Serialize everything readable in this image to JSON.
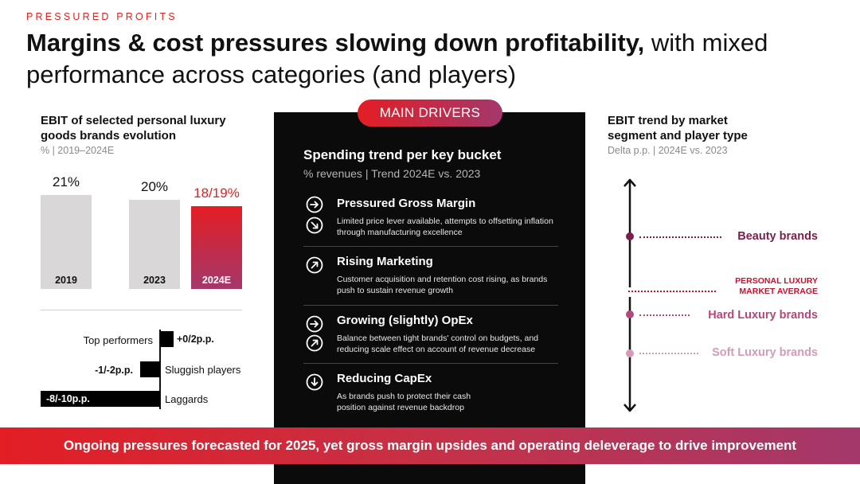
{
  "header": {
    "kicker": "PRESSURED PROFITS",
    "title_bold": "Margins & cost pressures slowing down profitability,",
    "title_rest": " with mixed performance across categories (and players)"
  },
  "left": {
    "title": "EBIT of selected personal luxury goods brands evolution",
    "subtitle": "% | 2019–2024E",
    "colors": {
      "bar": "#d9d7d8",
      "highlight_top": "#e31e24",
      "highlight_bottom": "#a3386b"
    }
  },
  "chart_data": [
    {
      "type": "bar",
      "categories": [
        "2019",
        "2023",
        "2024E"
      ],
      "values": [
        21,
        20,
        18.5
      ],
      "data_labels": [
        "21%",
        "20%",
        "18/19%"
      ],
      "ylim": [
        0,
        21
      ],
      "title": "EBIT of selected personal luxury goods brands evolution",
      "subtitle": "% | 2019–2024E"
    },
    {
      "type": "bar",
      "orientation": "horizontal",
      "categories": [
        "Top performers",
        "Sluggish players",
        "Laggards"
      ],
      "values": [
        1,
        -1.5,
        -9
      ],
      "data_labels": [
        "+0/2p.p.",
        "-1/-2p.p.",
        "-8/-10p.p."
      ]
    }
  ],
  "drivers": {
    "pill": "MAIN DRIVERS",
    "title": "Spending trend per key bucket",
    "subtitle": "% revenues | Trend 2024E vs. 2023",
    "items": [
      {
        "title": "Pressured Gross Margin",
        "desc": "Limited price lever available, attempts to offsetting inflation through manufacturing excellence",
        "icons": [
          "arrow-right-icon",
          "arrow-down-right-icon"
        ]
      },
      {
        "title": "Rising Marketing",
        "desc": "Customer acquisition and retention cost rising, as brands push to sustain revenue growth",
        "icons": [
          "arrow-up-right-icon"
        ]
      },
      {
        "title": "Growing (slightly) OpEx",
        "desc": "Balance between tight brands' control on budgets, and reducing scale effect on account of revenue decrease",
        "icons": [
          "arrow-right-icon",
          "arrow-up-right-icon"
        ]
      },
      {
        "title": "Reducing CapEx",
        "desc": "As brands push to protect their cash position against revenue backdrop",
        "icons": [
          "arrow-down-icon"
        ]
      }
    ]
  },
  "right": {
    "title": "EBIT trend by market segment and player type",
    "subtitle": "Delta p.p. | 2024E vs. 2023",
    "segments": [
      {
        "label": "Beauty brands",
        "color": "#7a1f4a"
      },
      {
        "label": "PERSONAL LUXURY MARKET AVERAGE",
        "color": "#c8102e"
      },
      {
        "label": "Hard Luxury brands",
        "color": "#b4487a"
      },
      {
        "label": "Soft Luxury brands",
        "color": "#d49bb8"
      }
    ]
  },
  "banner": {
    "text": "Ongoing pressures forecasted for 2025, yet gross margin upsides and operating deleverage to drive improvement"
  }
}
